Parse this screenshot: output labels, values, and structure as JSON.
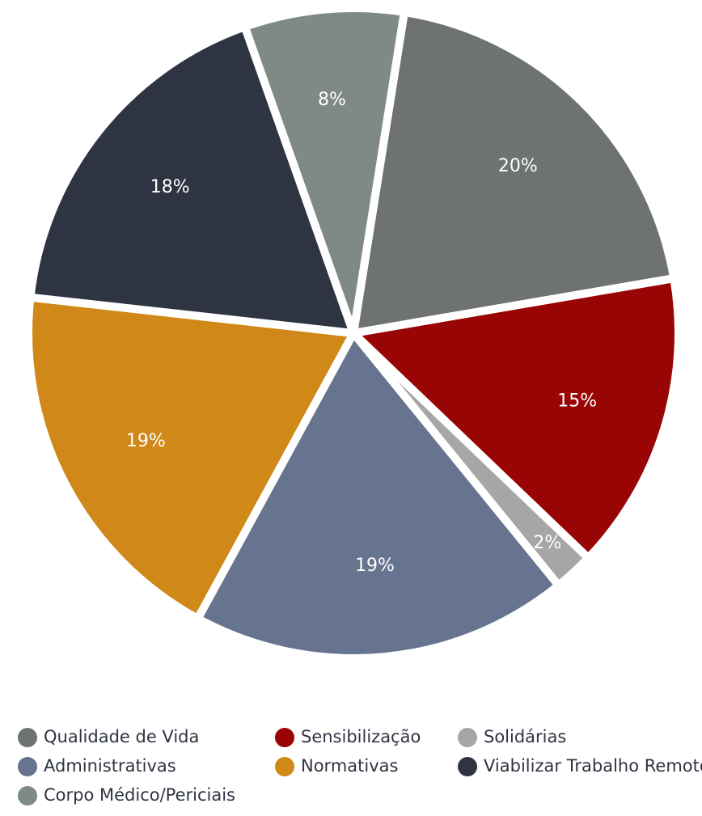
{
  "chart_data": {
    "type": "pie",
    "categories": [
      "Qualidade de Vida",
      "Sensibilização",
      "Solidárias",
      "Administrativas",
      "Normativas",
      "Viabilizar Trabalho Remoto",
      "Corpo Médico/Periciais"
    ],
    "values": [
      20,
      15,
      2,
      19,
      19,
      18,
      8
    ],
    "value_labels": [
      "20%",
      "15%",
      "2%",
      "19%",
      "19%",
      "18%",
      "8%"
    ],
    "colors": [
      "#6e7370",
      "#990505",
      "#a6a6a6",
      "#66748f",
      "#d08818",
      "#2f3442",
      "#7f8985"
    ]
  }
}
